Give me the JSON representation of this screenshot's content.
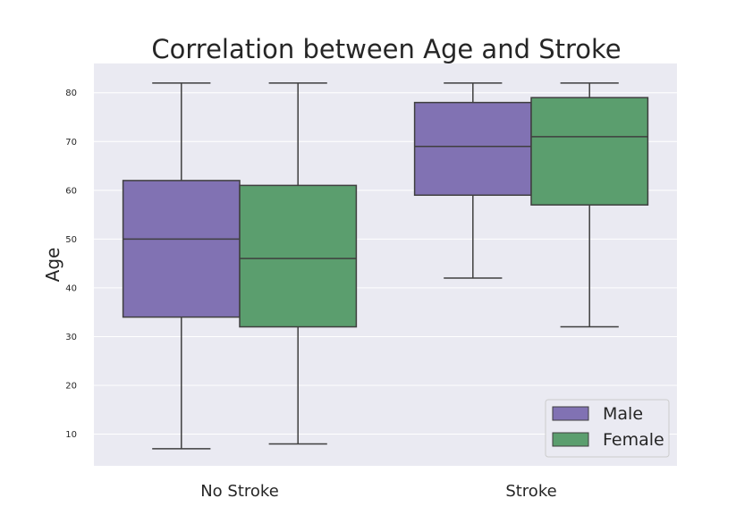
{
  "chart_data": {
    "type": "box",
    "title": "Correlation between Age and Stroke",
    "xlabel": "",
    "ylabel": "Age",
    "categories": [
      "No Stroke",
      "Stroke"
    ],
    "ylim": [
      3.5,
      86
    ],
    "yticks": [
      10,
      20,
      30,
      40,
      50,
      60,
      70,
      80
    ],
    "grid": true,
    "legend_position": "bottom-right",
    "series": [
      {
        "name": "Male",
        "color": "#8172b3",
        "boxes": [
          {
            "category": "No Stroke",
            "whisker_low": 7,
            "q1": 34,
            "median": 50,
            "q3": 62,
            "whisker_high": 82
          },
          {
            "category": "Stroke",
            "whisker_low": 42,
            "q1": 59,
            "median": 69,
            "q3": 78,
            "whisker_high": 82
          }
        ]
      },
      {
        "name": "Female",
        "color": "#5b9e6e",
        "boxes": [
          {
            "category": "No Stroke",
            "whisker_low": 8,
            "q1": 32,
            "median": 46,
            "q3": 61,
            "whisker_high": 82
          },
          {
            "category": "Stroke",
            "whisker_low": 32,
            "q1": 57,
            "median": 71,
            "q3": 79,
            "whisker_high": 82
          }
        ]
      }
    ]
  },
  "style": {
    "plot_background": "#eaeaf2",
    "grid_color": "#ffffff",
    "line_color": "#3f3f3f"
  }
}
